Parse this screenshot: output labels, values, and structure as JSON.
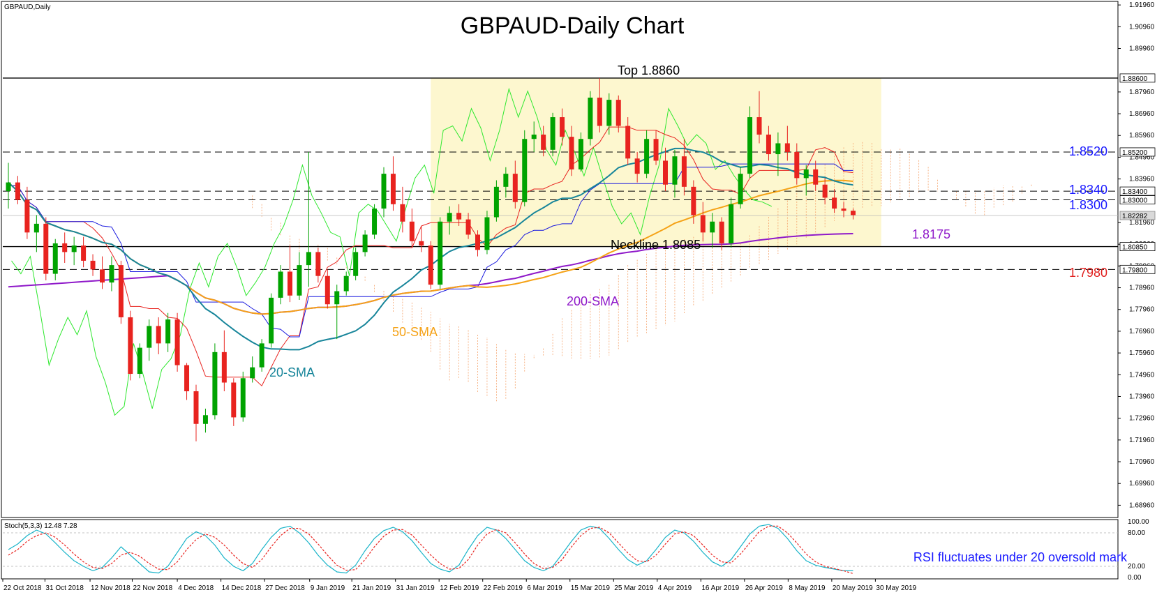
{
  "chart_data": {
    "type": "candlestick",
    "symbol_label": "GBPAUD,Daily",
    "title": "GBPAUD-Daily Chart",
    "y_ticks": [
      "1.91960",
      "1.90960",
      "1.89960",
      "1.87960",
      "1.86960",
      "1.85960",
      "1.84960",
      "1.83960",
      "1.81960",
      "1.80960",
      "1.79960",
      "1.78960",
      "1.77960",
      "1.76960",
      "1.75960",
      "1.74960",
      "1.73960",
      "1.72960",
      "1.71960",
      "1.70960",
      "1.69960",
      "1.68960"
    ],
    "ylim": [
      1.6846,
      1.9206
    ],
    "x_ticks": [
      "22 Oct 2018",
      "31 Oct 2018",
      "12 Nov 2018",
      "22 Nov 2018",
      "4 Dec 2018",
      "14 Dec 2018",
      "27 Dec 2018",
      "9 Jan 2019",
      "21 Jan 2019",
      "31 Jan 2019",
      "12 Feb 2019",
      "22 Feb 2019",
      "6 Mar 2019",
      "15 Mar 2019",
      "25 Mar 2019",
      "4 Apr 2019",
      "16 Apr 2019",
      "26 Apr 2019",
      "8 May 2019",
      "20 May 2019",
      "30 May 2019"
    ],
    "levels": [
      {
        "value": 1.886,
        "price_box": "1.88600",
        "label": "Top 1.8860",
        "style": "solid",
        "color": "#000000"
      },
      {
        "value": 1.852,
        "price_box": "1.85200",
        "label": "1.8520",
        "style": "dashed",
        "color": "#1a1aff"
      },
      {
        "value": 1.834,
        "price_box": "1.83400",
        "label": "1.8340",
        "style": "dashed",
        "color": "#1a1aff"
      },
      {
        "value": 1.83,
        "price_box": "1.83000",
        "label": "1.8300",
        "style": "dashed",
        "color": "#1a1aff"
      },
      {
        "value": 1.8085,
        "price_box": "1.80850",
        "label": "Neckline 1.8085",
        "style": "solid",
        "color": "#000000"
      },
      {
        "value": 1.798,
        "price_box": "1.79800",
        "label": "1.7980",
        "style": "dashed",
        "color": "#e0201e"
      }
    ],
    "current_price": {
      "value": 1.8228,
      "price_box": "1.82282"
    },
    "annotations": {
      "sma200_value": "1.8175",
      "sma200_label": "200-SMA",
      "sma50_label": "50-SMA",
      "sma20_label": "20-SMA"
    },
    "candles_ohlc": [
      [
        1.834,
        1.847,
        1.826,
        1.838
      ],
      [
        1.838,
        1.841,
        1.828,
        1.83
      ],
      [
        1.83,
        1.836,
        1.812,
        1.815
      ],
      [
        1.815,
        1.823,
        1.806,
        1.819
      ],
      [
        1.819,
        1.822,
        1.793,
        1.796
      ],
      [
        1.796,
        1.812,
        1.793,
        1.81
      ],
      [
        1.81,
        1.815,
        1.801,
        1.806
      ],
      [
        1.806,
        1.813,
        1.8,
        1.809
      ],
      [
        1.809,
        1.813,
        1.799,
        1.802
      ],
      [
        1.802,
        1.805,
        1.795,
        1.798
      ],
      [
        1.798,
        1.804,
        1.789,
        1.792
      ],
      [
        1.792,
        1.804,
        1.788,
        1.8
      ],
      [
        1.8,
        1.802,
        1.773,
        1.776
      ],
      [
        1.776,
        1.779,
        1.747,
        1.75
      ],
      [
        1.75,
        1.764,
        1.748,
        1.762
      ],
      [
        1.762,
        1.775,
        1.756,
        1.772
      ],
      [
        1.772,
        1.776,
        1.759,
        1.764
      ],
      [
        1.764,
        1.778,
        1.76,
        1.775
      ],
      [
        1.775,
        1.778,
        1.751,
        1.754
      ],
      [
        1.754,
        1.755,
        1.738,
        1.742
      ],
      [
        1.742,
        1.745,
        1.719,
        1.727
      ],
      [
        1.727,
        1.734,
        1.723,
        1.731
      ],
      [
        1.731,
        1.764,
        1.729,
        1.76
      ],
      [
        1.76,
        1.77,
        1.742,
        1.746
      ],
      [
        1.746,
        1.748,
        1.726,
        1.73
      ],
      [
        1.73,
        1.751,
        1.728,
        1.748
      ],
      [
        1.748,
        1.758,
        1.746,
        1.753
      ],
      [
        1.753,
        1.766,
        1.751,
        1.764
      ],
      [
        1.764,
        1.787,
        1.762,
        1.785
      ],
      [
        1.785,
        1.8,
        1.782,
        1.797
      ],
      [
        1.797,
        1.809,
        1.783,
        1.786
      ],
      [
        1.786,
        1.806,
        1.784,
        1.8
      ],
      [
        1.8,
        1.852,
        1.79,
        1.806
      ],
      [
        1.806,
        1.808,
        1.792,
        1.795
      ],
      [
        1.795,
        1.798,
        1.78,
        1.782
      ],
      [
        1.782,
        1.791,
        1.766,
        1.788
      ],
      [
        1.788,
        1.797,
        1.786,
        1.795
      ],
      [
        1.795,
        1.808,
        1.793,
        1.806
      ],
      [
        1.806,
        1.816,
        1.804,
        1.814
      ],
      [
        1.814,
        1.828,
        1.812,
        1.826
      ],
      [
        1.826,
        1.845,
        1.822,
        1.842
      ],
      [
        1.842,
        1.85,
        1.825,
        1.828
      ],
      [
        1.828,
        1.836,
        1.815,
        1.82
      ],
      [
        1.82,
        1.826,
        1.808,
        1.811
      ],
      [
        1.811,
        1.818,
        1.806,
        1.809
      ],
      [
        1.809,
        1.811,
        1.789,
        1.791
      ],
      [
        1.791,
        1.822,
        1.789,
        1.82
      ],
      [
        1.82,
        1.827,
        1.814,
        1.824
      ],
      [
        1.824,
        1.828,
        1.818,
        1.821
      ],
      [
        1.821,
        1.824,
        1.812,
        1.814
      ],
      [
        1.814,
        1.816,
        1.804,
        1.807
      ],
      [
        1.807,
        1.825,
        1.805,
        1.822
      ],
      [
        1.822,
        1.839,
        1.82,
        1.836
      ],
      [
        1.836,
        1.845,
        1.831,
        1.842
      ],
      [
        1.842,
        1.848,
        1.826,
        1.829
      ],
      [
        1.829,
        1.862,
        1.827,
        1.858
      ],
      [
        1.858,
        1.866,
        1.852,
        1.86
      ],
      [
        1.86,
        1.864,
        1.85,
        1.853
      ],
      [
        1.853,
        1.87,
        1.85,
        1.868
      ],
      [
        1.868,
        1.872,
        1.855,
        1.859
      ],
      [
        1.859,
        1.864,
        1.841,
        1.844
      ],
      [
        1.844,
        1.861,
        1.843,
        1.858
      ],
      [
        1.858,
        1.88,
        1.855,
        1.877
      ],
      [
        1.877,
        1.886,
        1.861,
        1.864
      ],
      [
        1.864,
        1.879,
        1.86,
        1.876
      ],
      [
        1.876,
        1.878,
        1.861,
        1.864
      ],
      [
        1.864,
        1.868,
        1.846,
        1.849
      ],
      [
        1.849,
        1.852,
        1.838,
        1.842
      ],
      [
        1.842,
        1.862,
        1.84,
        1.858
      ],
      [
        1.858,
        1.862,
        1.846,
        1.848
      ],
      [
        1.848,
        1.854,
        1.834,
        1.837
      ],
      [
        1.837,
        1.853,
        1.831,
        1.85
      ],
      [
        1.85,
        1.858,
        1.832,
        1.836
      ],
      [
        1.836,
        1.839,
        1.819,
        1.823
      ],
      [
        1.823,
        1.829,
        1.811,
        1.815
      ],
      [
        1.815,
        1.824,
        1.808,
        1.82
      ],
      [
        1.82,
        1.822,
        1.807,
        1.81
      ],
      [
        1.81,
        1.831,
        1.808,
        1.828
      ],
      [
        1.828,
        1.845,
        1.826,
        1.842
      ],
      [
        1.842,
        1.873,
        1.84,
        1.868
      ],
      [
        1.868,
        1.88,
        1.856,
        1.86
      ],
      [
        1.86,
        1.864,
        1.848,
        1.851
      ],
      [
        1.851,
        1.861,
        1.841,
        1.856
      ],
      [
        1.856,
        1.864,
        1.848,
        1.852
      ],
      [
        1.852,
        1.856,
        1.837,
        1.84
      ],
      [
        1.84,
        1.846,
        1.832,
        1.844
      ],
      [
        1.844,
        1.848,
        1.834,
        1.837
      ],
      [
        1.837,
        1.84,
        1.828,
        1.831
      ],
      [
        1.831,
        1.835,
        1.824,
        1.826
      ],
      [
        1.826,
        1.829,
        1.822,
        1.825
      ],
      [
        1.825,
        1.826,
        1.821,
        1.823
      ]
    ],
    "stochastic": {
      "label": "Stoch(5,3,3) 12.48 7.28",
      "ylim": [
        0,
        100
      ],
      "y_ticks": [
        "100.00",
        "80.00",
        "20.00",
        "0.00"
      ],
      "main": [
        50,
        60,
        75,
        85,
        78,
        62,
        45,
        30,
        20,
        12,
        18,
        35,
        55,
        40,
        25,
        10,
        8,
        20,
        45,
        70,
        82,
        75,
        58,
        35,
        20,
        12,
        25,
        50,
        72,
        88,
        92,
        80,
        62,
        40,
        22,
        10,
        8,
        22,
        48,
        70,
        84,
        90,
        82,
        66,
        45,
        25,
        15,
        10,
        22,
        50,
        75,
        90,
        85,
        70,
        50,
        30,
        18,
        12,
        20,
        42,
        65,
        85,
        92,
        88,
        70,
        50,
        32,
        22,
        30,
        50,
        72,
        85,
        80,
        65,
        45,
        28,
        20,
        32,
        55,
        78,
        92,
        95,
        88,
        70,
        48,
        30,
        22,
        18,
        15,
        12,
        12
      ],
      "signal": [
        40,
        50,
        65,
        75,
        80,
        72,
        58,
        42,
        28,
        18,
        16,
        25,
        40,
        45,
        38,
        25,
        15,
        14,
        28,
        50,
        68,
        78,
        72,
        58,
        40,
        25,
        18,
        32,
        55,
        75,
        88,
        88,
        78,
        60,
        40,
        22,
        13,
        14,
        32,
        55,
        74,
        85,
        86,
        76,
        58,
        40,
        25,
        15,
        16,
        32,
        58,
        78,
        86,
        80,
        62,
        42,
        25,
        16,
        18,
        32,
        55,
        75,
        88,
        90,
        80,
        62,
        44,
        30,
        28,
        40,
        60,
        78,
        82,
        75,
        58,
        40,
        28,
        26,
        42,
        62,
        82,
        92,
        92,
        80,
        62,
        42,
        28,
        20,
        16,
        12,
        7
      ]
    }
  }
}
